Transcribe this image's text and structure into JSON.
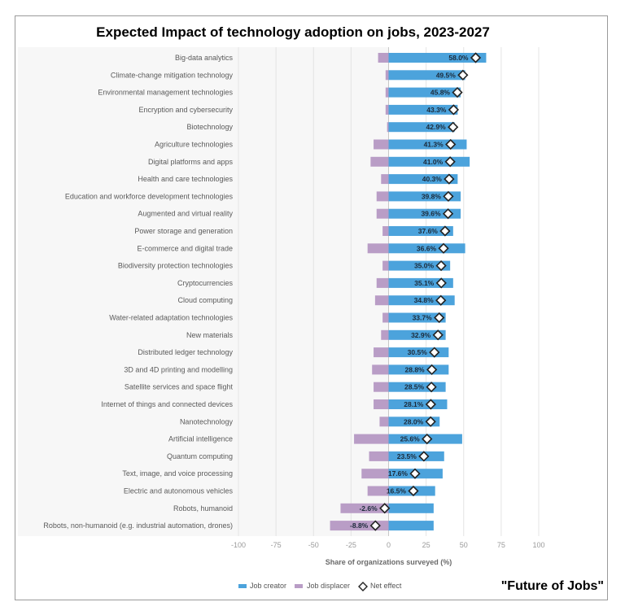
{
  "chart_data": {
    "type": "bar",
    "title": "Expected Impact of technology adoption on jobs, 2023-2027",
    "xlabel": "Share of organizations surveyed (%)",
    "xlim": [
      -100,
      100
    ],
    "xticks": [
      "-100",
      "-75",
      "-50",
      "-25",
      "0",
      "25",
      "50",
      "75",
      "100"
    ],
    "grid": true,
    "legend_position": "bottom",
    "categories": [
      "Big-data analytics",
      "Climate-change mitigation technology",
      "Environmental management technologies",
      "Encryption and cybersecurity",
      "Biotechnology",
      "Agriculture technologies",
      "Digital platforms and apps",
      "Health and care technologies",
      "Education and workforce development technologies",
      "Augmented and virtual reality",
      "Power storage and generation",
      "E-commerce and digital trade",
      "Biodiversity protection technologies",
      "Cryptocurrencies",
      "Cloud computing",
      "Water-related adaptation technologies",
      "New materials",
      "Distributed ledger technology",
      "3D and 4D printing and modelling",
      "Satellite services and space flight",
      "Internet of things and connected devices",
      "Nanotechnology",
      "Artificial intelligence",
      "Quantum computing",
      "Text, image, and voice processing",
      "Electric and autonomous vehicles",
      "Robots, humanoid",
      "Robots, non-humanoid (e.g. industrial automation, drones)"
    ],
    "series": [
      {
        "name": "Job creator",
        "color": "#4ca3dc",
        "values": [
          65,
          51,
          48,
          46,
          44,
          52,
          54,
          46,
          48,
          48,
          43,
          51,
          41,
          43,
          44,
          38,
          38,
          40,
          40,
          38,
          39,
          34,
          49,
          37,
          36,
          31,
          30,
          30
        ]
      },
      {
        "name": "Job displacer",
        "color": "#b99dc6",
        "values": [
          -7,
          -2,
          -2,
          -2,
          -1,
          -10,
          -12,
          -5,
          -8,
          -8,
          -4,
          -14,
          -4,
          -8,
          -9,
          -4,
          -5,
          -10,
          -11,
          -10,
          -10,
          -6,
          -23,
          -13,
          -18,
          -14,
          -32,
          -39
        ]
      },
      {
        "name": "Net effect",
        "color": "#ffffff",
        "values": [
          58.0,
          49.5,
          45.8,
          43.3,
          42.9,
          41.3,
          41.0,
          40.3,
          39.8,
          39.6,
          37.6,
          36.6,
          35.0,
          35.1,
          34.8,
          33.7,
          32.9,
          30.5,
          28.8,
          28.5,
          28.1,
          28.0,
          25.6,
          23.5,
          17.6,
          16.5,
          -2.6,
          -8.8
        ],
        "labels": [
          "58.0%",
          "49.5%",
          "45.8%",
          "43.3%",
          "42.9%",
          "41.3%",
          "41.0%",
          "40.3%",
          "39.8%",
          "39.6%",
          "37.6%",
          "36.6%",
          "35.0%",
          "35.1%",
          "34.8%",
          "33.7%",
          "32.9%",
          "30.5%",
          "28.8%",
          "28.5%",
          "28.1%",
          "28.0%",
          "25.6%",
          "23.5%",
          "17.6%",
          "16.5%",
          "-2.6%",
          "-8.8%"
        ]
      }
    ]
  },
  "footer_note": "\"Future of Jobs\""
}
